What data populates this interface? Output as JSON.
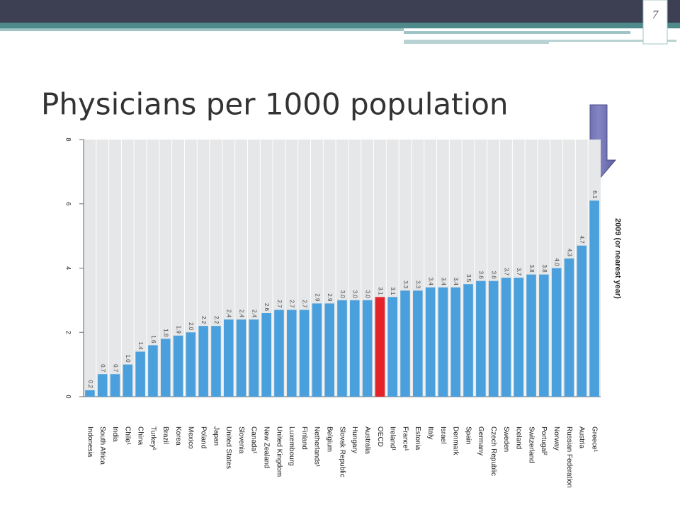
{
  "slide_number": 7,
  "chart_data": {
    "type": "bar",
    "title": "Physicians per 1000 population",
    "y_axis_label": "2009 (or nearest year)",
    "categories": [
      "Indonesia",
      "South Africa",
      "India",
      "Chile¹",
      "China",
      "Turkey¹",
      "Brazil",
      "Korea",
      "Mexico",
      "Poland",
      "Japan",
      "United States",
      "Slovenia",
      "Canada¹",
      "New Zealand",
      "United Kingdom",
      "Luxembourg",
      "Finland",
      "Netherlands¹",
      "Belgium",
      "Slovak Republic",
      "Hungary",
      "Australia",
      "OECD",
      "Ireland¹",
      "France¹",
      "Estonia",
      "Italy",
      "Israel",
      "Denmark",
      "Spain",
      "Germany",
      "Czech Republic",
      "Sweden",
      "Iceland",
      "Switzerland",
      "Portugal²",
      "Norway",
      "Russian Federation",
      "Austria",
      "Greece¹"
    ],
    "values": [
      0.2,
      0.7,
      0.7,
      1.0,
      1.4,
      1.6,
      1.8,
      1.9,
      2.0,
      2.2,
      2.2,
      2.4,
      2.4,
      2.4,
      2.6,
      2.7,
      2.7,
      2.7,
      2.9,
      2.9,
      3.0,
      3.0,
      3.0,
      3.1,
      3.1,
      3.3,
      3.3,
      3.4,
      3.4,
      3.4,
      3.5,
      3.6,
      3.6,
      3.7,
      3.7,
      3.8,
      3.8,
      4.0,
      4.3,
      4.7,
      6.1
    ],
    "value_labels": [
      "0.2",
      "0.7",
      "0.7",
      "1.0",
      "1.4",
      "1.6",
      "1.8",
      "1.9",
      "2.0",
      "2.2",
      "2.2",
      "2.4",
      "2.4",
      "2.4",
      "2.6",
      "2.7",
      "2.7",
      "2.7",
      "2.9",
      "2.9",
      "3.0",
      "3.0",
      "3.0",
      "3.1",
      "3.1",
      "3.3",
      "3.3",
      "3.4",
      "3.4",
      "3.4",
      "3.5",
      "3.6",
      "3.6",
      "3.7",
      "3.7",
      "3.8",
      "3.8",
      "4.0",
      "4.3",
      "4.7",
      "6.1"
    ],
    "colors": [
      "#4aa0dc",
      "#4aa0dc",
      "#4aa0dc",
      "#4aa0dc",
      "#4aa0dc",
      "#4aa0dc",
      "#4aa0dc",
      "#4aa0dc",
      "#4aa0dc",
      "#4aa0dc",
      "#4aa0dc",
      "#4aa0dc",
      "#4aa0dc",
      "#4aa0dc",
      "#4aa0dc",
      "#4aa0dc",
      "#4aa0dc",
      "#4aa0dc",
      "#4aa0dc",
      "#4aa0dc",
      "#4aa0dc",
      "#4aa0dc",
      "#4aa0dc",
      "#e3222a",
      "#4aa0dc",
      "#4aa0dc",
      "#4aa0dc",
      "#4aa0dc",
      "#4aa0dc",
      "#4aa0dc",
      "#4aa0dc",
      "#4aa0dc",
      "#4aa0dc",
      "#4aa0dc",
      "#4aa0dc",
      "#4aa0dc",
      "#4aa0dc",
      "#4aa0dc",
      "#4aa0dc",
      "#4aa0dc",
      "#4aa0dc"
    ],
    "ylim": [
      0,
      8
    ],
    "yticks": [
      0,
      2,
      4,
      6,
      8
    ],
    "grid": false
  }
}
